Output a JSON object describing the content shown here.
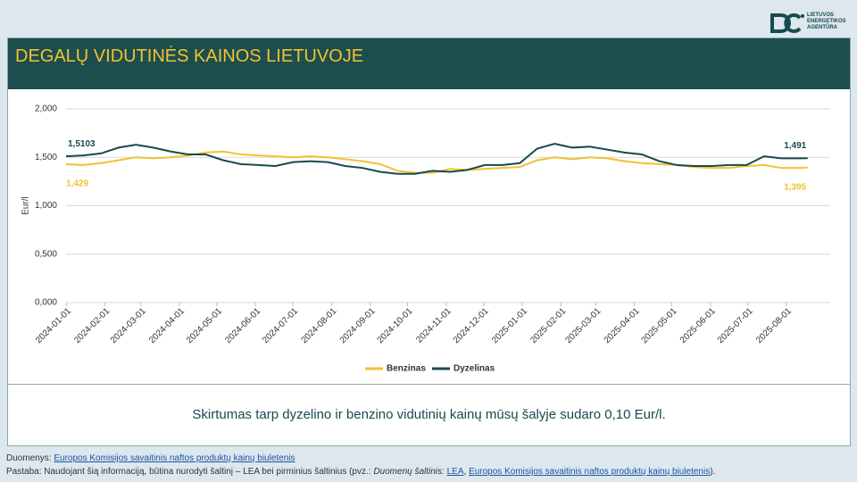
{
  "logo": [
    "LIETUVOS",
    "ENERGETIKOS",
    "AGENTŪRA"
  ],
  "chart_data": {
    "type": "line",
    "title": "DEGALŲ VIDUTINĖS KAINOS LIETUVOJE",
    "ylabel": "Eur/l",
    "x": [
      "2024-01-01",
      "2024-01-15",
      "2024-01-29",
      "2024-02-12",
      "2024-02-26",
      "2024-03-11",
      "2024-03-25",
      "2024-04-08",
      "2024-04-22",
      "2024-05-06",
      "2024-05-20",
      "2024-06-03",
      "2024-06-17",
      "2024-07-01",
      "2024-07-15",
      "2024-07-29",
      "2024-08-12",
      "2024-08-26",
      "2024-09-09",
      "2024-09-23",
      "2024-10-07",
      "2024-10-21",
      "2024-11-04",
      "2024-11-18",
      "2024-12-02",
      "2024-12-16",
      "2024-12-30",
      "2025-01-13",
      "2025-01-27",
      "2025-02-10",
      "2025-02-24",
      "2025-03-10",
      "2025-03-24",
      "2025-04-07",
      "2025-04-21",
      "2025-05-05",
      "2025-05-19",
      "2025-06-02",
      "2025-06-16",
      "2025-06-30",
      "2025-07-14",
      "2025-07-28",
      "2025-08-11",
      "2025-08-18"
    ],
    "series": [
      {
        "name": "Benzinas",
        "color": "#f2c230",
        "values": [
          1.429,
          1.42,
          1.44,
          1.47,
          1.5,
          1.49,
          1.5,
          1.52,
          1.55,
          1.56,
          1.53,
          1.52,
          1.51,
          1.5,
          1.51,
          1.5,
          1.48,
          1.46,
          1.43,
          1.36,
          1.34,
          1.34,
          1.38,
          1.37,
          1.38,
          1.39,
          1.4,
          1.47,
          1.5,
          1.48,
          1.5,
          1.49,
          1.46,
          1.44,
          1.43,
          1.42,
          1.4,
          1.39,
          1.39,
          1.41,
          1.42,
          1.39,
          1.39,
          1.395
        ],
        "value_labels": [
          "1,429",
          null,
          null,
          null,
          null,
          null,
          null,
          null,
          null,
          null,
          null,
          null,
          null,
          null,
          null,
          null,
          null,
          null,
          null,
          null,
          null,
          null,
          null,
          null,
          null,
          null,
          null,
          null,
          null,
          null,
          null,
          null,
          null,
          null,
          null,
          null,
          null,
          null,
          null,
          null,
          null,
          null,
          null,
          "1,395"
        ]
      },
      {
        "name": "Dyzelinas",
        "color": "#174a4e",
        "values": [
          1.5103,
          1.52,
          1.54,
          1.6,
          1.63,
          1.6,
          1.56,
          1.53,
          1.53,
          1.47,
          1.43,
          1.42,
          1.41,
          1.45,
          1.46,
          1.45,
          1.41,
          1.39,
          1.35,
          1.33,
          1.33,
          1.36,
          1.35,
          1.37,
          1.42,
          1.42,
          1.44,
          1.59,
          1.64,
          1.6,
          1.61,
          1.58,
          1.55,
          1.53,
          1.46,
          1.42,
          1.41,
          1.41,
          1.42,
          1.42,
          1.51,
          1.49,
          1.49,
          1.491
        ],
        "value_labels": [
          "1,5103",
          null,
          null,
          null,
          null,
          null,
          null,
          null,
          null,
          null,
          null,
          null,
          null,
          null,
          null,
          null,
          null,
          null,
          null,
          null,
          null,
          null,
          null,
          null,
          null,
          null,
          null,
          null,
          null,
          null,
          null,
          null,
          null,
          null,
          null,
          null,
          null,
          null,
          null,
          null,
          null,
          null,
          null,
          "1,491"
        ]
      }
    ],
    "xlim": [
      "2024-01-01",
      "2025-08-01"
    ],
    "xticks": [
      "2024-01-01",
      "2024-02-01",
      "2024-03-01",
      "2024-04-01",
      "2024-05-01",
      "2024-06-01",
      "2024-07-01",
      "2024-08-01",
      "2024-09-01",
      "2024-10-01",
      "2024-11-01",
      "2024-12-01",
      "2025-01-01",
      "2025-02-01",
      "2025-03-01",
      "2025-04-01",
      "2025-05-01",
      "2025-06-01",
      "2025-07-01",
      "2025-08-01"
    ],
    "ylim": [
      0,
      2
    ],
    "yticks": [
      {
        "value": 0,
        "label": "0,000"
      },
      {
        "value": 0.5,
        "label": "0,500"
      },
      {
        "value": 1,
        "label": "1,000"
      },
      {
        "value": 1.5,
        "label": "1,500"
      },
      {
        "value": 2,
        "label": "2,000"
      }
    ],
    "grid": true,
    "legend": "bottom"
  },
  "summary": "Skirtumas tarp dyzelino ir benzino vidutinių kainų mūsų šalyje sudaro 0,10 Eur/l.",
  "footer": {
    "sources_label": "Duomenys:",
    "sources_link": "Europos Komisijos savaitinis naftos produktų kainų biuletenis",
    "note_start": "Pastaba: Naudojant šią informaciją, būtina nurodyti šaltinį – LEA bei pirminius šaltinius (pvz.:",
    "note_italic": "Duomenų šaltinis:",
    "note_link1": "LEA",
    "note_sep": ",",
    "note_link2": "Europos Komisijos savaitinis naftos produktų kainų biuletenis",
    "note_end": ")."
  }
}
